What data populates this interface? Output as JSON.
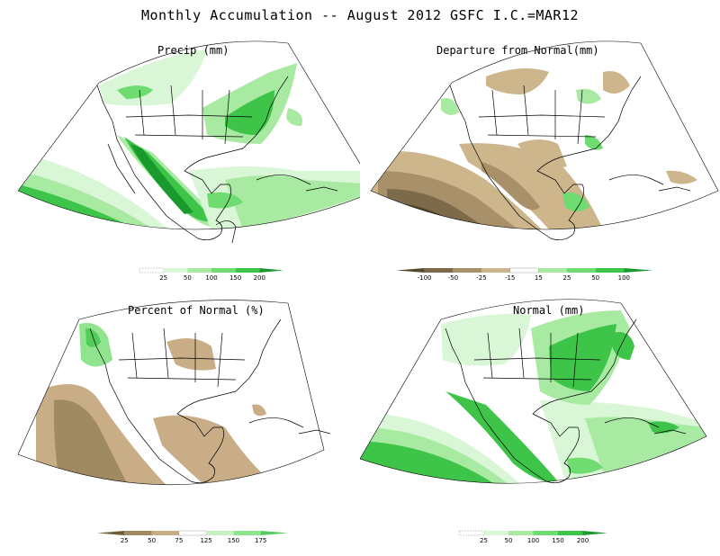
{
  "figure": {
    "title": "Monthly Accumulation -- August 2012 GSFC I.C.=MAR12"
  },
  "panels": [
    {
      "id": "precip",
      "title": "Precip (mm)",
      "colorbar": {
        "labels": [
          "25",
          "50",
          "100",
          "150",
          "200"
        ],
        "colors": [
          "#ffffff",
          "#d9f7d6",
          "#a9eaa3",
          "#6fdc72",
          "#3fc44a",
          "#1a9a2c"
        ]
      }
    },
    {
      "id": "departure",
      "title": "Departure from Normal(mm)",
      "colorbar": {
        "labels": [
          "-100",
          "-50",
          "-25",
          "-15",
          "15",
          "25",
          "50",
          "100"
        ],
        "colors": [
          "#4e4a2a",
          "#7d6a4a",
          "#a8906a",
          "#cdb58c",
          "#ffffff",
          "#a9eaa3",
          "#6fdc72",
          "#3fc44a",
          "#1a9a2c"
        ]
      }
    },
    {
      "id": "percent",
      "title": "Percent of Normal (%)",
      "colorbar": {
        "labels": [
          "25",
          "50",
          "75",
          "125",
          "150",
          "175"
        ],
        "colors": [
          "#6e5e3a",
          "#a08a62",
          "#c8ad86",
          "#ffffff",
          "#c7f1c3",
          "#90e48f",
          "#53cc5b"
        ]
      }
    },
    {
      "id": "normal",
      "title": "Normal (mm)",
      "colorbar": {
        "labels": [
          "25",
          "50",
          "100",
          "150",
          "200"
        ],
        "colors": [
          "#ffffff",
          "#d9f7d6",
          "#a9eaa3",
          "#6fdc72",
          "#3fc44a",
          "#1a9a2c"
        ]
      }
    }
  ],
  "colors": {
    "coast_line": "#000000",
    "light_green": "#d9f7d6",
    "mid_green": "#a9eaa3",
    "green": "#6fdc72",
    "dark_green": "#1a9a2c",
    "light_brown": "#cdb58c",
    "brown": "#a8906a",
    "dark_brown": "#4e4a2a"
  }
}
